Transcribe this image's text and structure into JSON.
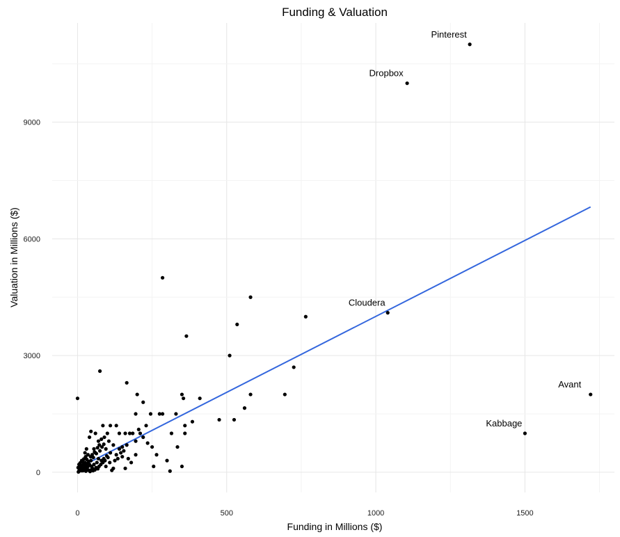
{
  "chart_data": {
    "type": "scatter",
    "title": "Funding & Valuation",
    "xlabel": "Funding in Millions ($)",
    "ylabel": "Valuation in Millions ($)",
    "xlim": [
      -85,
      1800
    ],
    "ylim": [
      -520,
      11550
    ],
    "x_ticks": [
      0,
      500,
      1000,
      1500
    ],
    "y_ticks": [
      0,
      3000,
      6000,
      9000
    ],
    "grid": true,
    "legend": "none",
    "colors": {
      "points": "#000000",
      "trend": "#3366dd"
    },
    "trend_line": {
      "x": [
        0,
        1720
      ],
      "y": [
        100,
        6820
      ]
    },
    "annotations": [
      {
        "label": "Pinterest",
        "x": 1315,
        "y": 11000
      },
      {
        "label": "Dropbox",
        "x": 1105,
        "y": 10000
      },
      {
        "label": "Cloudera",
        "x": 1040,
        "y": 4100
      },
      {
        "label": "Avant",
        "x": 1720,
        "y": 2000
      },
      {
        "label": "Kabbage",
        "x": 1500,
        "y": 1000
      }
    ],
    "points": [
      [
        1315,
        11000
      ],
      [
        1105,
        10000
      ],
      [
        1040,
        4100
      ],
      [
        1720,
        2000
      ],
      [
        1500,
        1000
      ],
      [
        285,
        5000
      ],
      [
        580,
        4500
      ],
      [
        535,
        3800
      ],
      [
        765,
        4000
      ],
      [
        365,
        3500
      ],
      [
        510,
        3000
      ],
      [
        725,
        2700
      ],
      [
        75,
        2600
      ],
      [
        0,
        1900
      ],
      [
        165,
        2300
      ],
      [
        350,
        2000
      ],
      [
        355,
        1900
      ],
      [
        410,
        1900
      ],
      [
        580,
        2000
      ],
      [
        695,
        2000
      ],
      [
        560,
        1650
      ],
      [
        475,
        1350
      ],
      [
        525,
        1350
      ],
      [
        385,
        1300
      ],
      [
        200,
        2000
      ],
      [
        220,
        1800
      ],
      [
        195,
        1500
      ],
      [
        245,
        1500
      ],
      [
        275,
        1500
      ],
      [
        285,
        1500
      ],
      [
        330,
        1500
      ],
      [
        360,
        1200
      ],
      [
        360,
        1000
      ],
      [
        315,
        1000
      ],
      [
        230,
        1200
      ],
      [
        205,
        1100
      ],
      [
        160,
        1000
      ],
      [
        175,
        1000
      ],
      [
        185,
        1000
      ],
      [
        140,
        1000
      ],
      [
        100,
        1000
      ],
      [
        60,
        1000
      ],
      [
        85,
        1200
      ],
      [
        110,
        1200
      ],
      [
        130,
        1200
      ],
      [
        210,
        1000
      ],
      [
        220,
        900
      ],
      [
        235,
        750
      ],
      [
        195,
        800
      ],
      [
        165,
        700
      ],
      [
        150,
        650
      ],
      [
        140,
        600
      ],
      [
        120,
        700
      ],
      [
        105,
        800
      ],
      [
        90,
        900
      ],
      [
        80,
        850
      ],
      [
        70,
        800
      ],
      [
        45,
        1050
      ],
      [
        40,
        900
      ],
      [
        55,
        600
      ],
      [
        30,
        600
      ],
      [
        25,
        500
      ],
      [
        35,
        450
      ],
      [
        60,
        500
      ],
      [
        75,
        550
      ],
      [
        95,
        600
      ],
      [
        110,
        500
      ],
      [
        130,
        450
      ],
      [
        150,
        400
      ],
      [
        170,
        350
      ],
      [
        195,
        450
      ],
      [
        250,
        650
      ],
      [
        265,
        450
      ],
      [
        300,
        300
      ],
      [
        335,
        650
      ],
      [
        350,
        150
      ],
      [
        310,
        30
      ],
      [
        255,
        150
      ],
      [
        180,
        250
      ],
      [
        160,
        100
      ],
      [
        120,
        100
      ],
      [
        115,
        50
      ],
      [
        95,
        150
      ],
      [
        80,
        300
      ],
      [
        70,
        350
      ],
      [
        65,
        250
      ],
      [
        55,
        200
      ],
      [
        50,
        100
      ],
      [
        45,
        300
      ],
      [
        40,
        200
      ],
      [
        35,
        150
      ],
      [
        30,
        100
      ],
      [
        25,
        250
      ],
      [
        20,
        200
      ],
      [
        15,
        150
      ],
      [
        12,
        100
      ],
      [
        10,
        50
      ],
      [
        8,
        80
      ],
      [
        5,
        30
      ],
      [
        3,
        10
      ],
      [
        18,
        40
      ],
      [
        22,
        60
      ],
      [
        28,
        30
      ],
      [
        33,
        70
      ],
      [
        38,
        50
      ],
      [
        42,
        20
      ],
      [
        48,
        80
      ],
      [
        52,
        40
      ],
      [
        58,
        60
      ],
      [
        62,
        120
      ],
      [
        68,
        90
      ],
      [
        72,
        150
      ],
      [
        78,
        200
      ],
      [
        85,
        250
      ],
      [
        88,
        350
      ],
      [
        92,
        300
      ],
      [
        98,
        420
      ],
      [
        102,
        380
      ],
      [
        108,
        250
      ],
      [
        125,
        300
      ],
      [
        135,
        350
      ],
      [
        145,
        500
      ],
      [
        155,
        550
      ],
      [
        5,
        200
      ],
      [
        8,
        150
      ],
      [
        14,
        300
      ],
      [
        19,
        260
      ],
      [
        26,
        180
      ],
      [
        31,
        330
      ],
      [
        37,
        280
      ],
      [
        44,
        400
      ],
      [
        49,
        450
      ],
      [
        53,
        380
      ],
      [
        57,
        520
      ],
      [
        63,
        480
      ],
      [
        67,
        630
      ],
      [
        73,
        700
      ],
      [
        82,
        650
      ],
      [
        88,
        720
      ],
      [
        47,
        150
      ],
      [
        32,
        220
      ],
      [
        24,
        120
      ],
      [
        16,
        80
      ],
      [
        11,
        180
      ],
      [
        6,
        60
      ],
      [
        2,
        120
      ],
      [
        9,
        240
      ],
      [
        13,
        40
      ],
      [
        21,
        340
      ],
      [
        27,
        400
      ]
    ]
  }
}
